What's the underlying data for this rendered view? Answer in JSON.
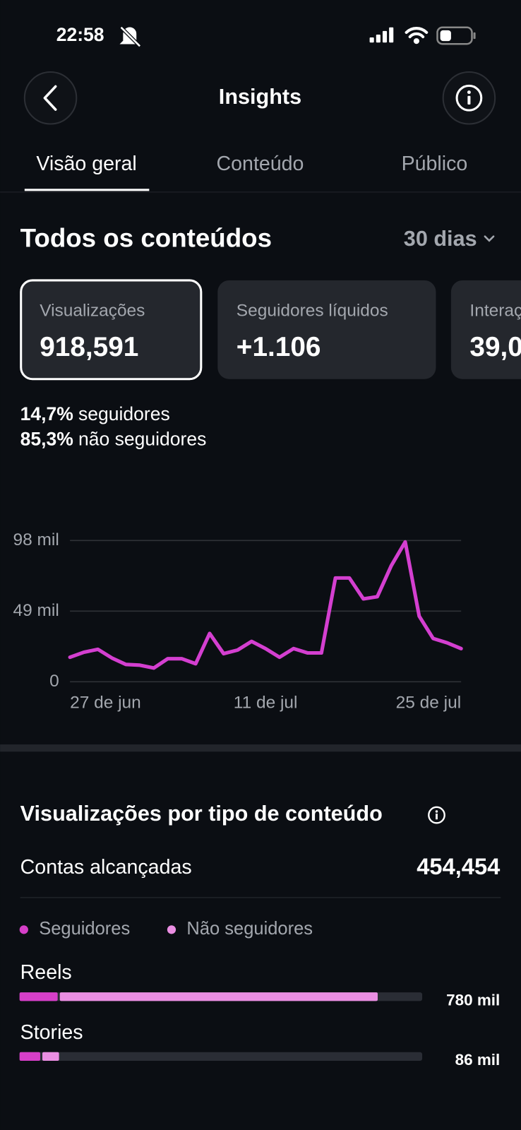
{
  "status_bar": {
    "time": "22:58"
  },
  "header": {
    "title": "Insights"
  },
  "tabs": [
    "Visão geral",
    "Conteúdo",
    "Público"
  ],
  "section": {
    "title": "Todos os conteúdos",
    "period": "30 dias"
  },
  "cards": [
    {
      "label": "Visualizações",
      "value": "918,591"
    },
    {
      "label": "Seguidores líquidos",
      "value": "+1.106"
    },
    {
      "label": "Interações",
      "value": "39,0"
    }
  ],
  "audience_split": [
    {
      "share": "14,7%",
      "label": "seguidores"
    },
    {
      "share": "85,3%",
      "label": "não seguidores"
    }
  ],
  "chart_data": [
    {
      "type": "line",
      "color": "#d43fd0",
      "categories": [
        "27 de jun",
        null,
        null,
        null,
        null,
        null,
        null,
        null,
        null,
        null,
        null,
        null,
        null,
        null,
        "11 de jul",
        null,
        null,
        null,
        null,
        null,
        null,
        null,
        null,
        null,
        null,
        null,
        null,
        null,
        "25 de jul"
      ],
      "values": [
        17,
        20.5,
        22.5,
        16.5,
        12,
        11.5,
        9.5,
        16,
        16,
        12.5,
        33.5,
        19.5,
        22,
        28,
        23,
        17,
        23,
        20,
        20,
        72,
        72,
        57.5,
        59,
        80.5,
        97,
        45.5,
        30,
        27,
        23
      ],
      "ylim": [
        0,
        98
      ],
      "yticks": [
        0,
        {
          "value": 49,
          "label": "49 mil"
        },
        {
          "value": 98,
          "label": "98 mil"
        }
      ],
      "grid": true
    },
    {
      "type": "bar",
      "orientation": "horizontal",
      "title": "Visualizações por tipo de conteúdo",
      "categories": [
        "Reels",
        "Stories"
      ],
      "series": [
        {
          "name": "Seguidores",
          "color": "#d63fc8",
          "values": [
            83,
            45
          ]
        },
        {
          "name": "Não seguidores",
          "color": "#ea8ee2",
          "values": [
            697,
            41
          ]
        }
      ],
      "totals": [
        780,
        86
      ],
      "total_labels": [
        "780 mil",
        "86 mil"
      ],
      "xlim": [
        0,
        877
      ]
    }
  ],
  "reach": {
    "label": "Contas alcançadas",
    "value": "454,454"
  }
}
